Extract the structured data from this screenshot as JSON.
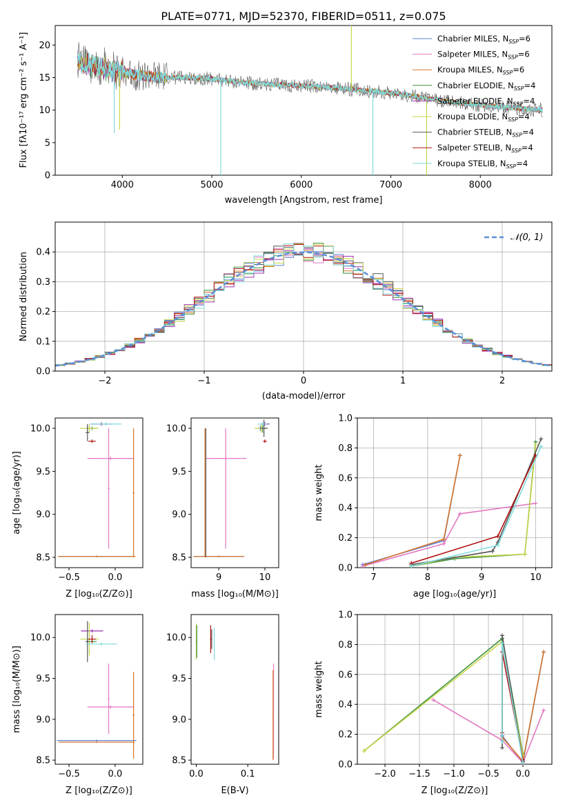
{
  "title": "PLATE=0771, MJD=52370, FIBERID=0511, z=0.075",
  "legend": [
    {
      "label": "Chabrier MILES, N",
      "sub": "SSP",
      "tail": "=6",
      "color": "#5b7fd6"
    },
    {
      "label": "Salpeter MILES, N",
      "sub": "SSP",
      "tail": "=6",
      "color": "#e377c2"
    },
    {
      "label": "Kroupa MILES, N",
      "sub": "SSP",
      "tail": "=6",
      "color": "#d6762a"
    },
    {
      "label": "Chabrier ELODIE, N",
      "sub": "SSP",
      "tail": "=4",
      "color": "#3c8f3c"
    },
    {
      "label": "Salpeter ELODIE, N",
      "sub": "SSP",
      "tail": "=4",
      "color": "#9b30b0"
    },
    {
      "label": "Kroupa ELODIE, N",
      "sub": "SSP",
      "tail": "=4",
      "color": "#c9d64a"
    },
    {
      "label": "Chabrier STELIB, N",
      "sub": "SSP",
      "tail": "=4",
      "color": "#555555"
    },
    {
      "label": "Salpeter STELIB, N",
      "sub": "SSP",
      "tail": "=4",
      "color": "#b01010"
    },
    {
      "label": "Kroupa STELIB, N",
      "sub": "SSP",
      "tail": "=4",
      "color": "#7fdcdc"
    }
  ],
  "chart_data": [
    {
      "type": "line",
      "xlabel": "wavelength [Angstrom, rest frame]",
      "ylabel": "Flux [fλ10⁻¹⁷ erg cm⁻² s⁻¹ A⁻¹]",
      "xlim": [
        3250,
        8800
      ],
      "ylim": [
        0,
        23
      ],
      "xticks": [
        4000,
        5000,
        6000,
        7000,
        8000
      ],
      "yticks": [
        0,
        5,
        10,
        15,
        20
      ],
      "series": [
        {
          "name": "Chabrier MILES, NSSP=6",
          "x": [
            3500,
            3800,
            4100,
            4400,
            4700,
            5000,
            5300,
            5600,
            5900,
            6200,
            6500,
            6800,
            7100,
            7400,
            7700,
            8000,
            8300,
            8700
          ],
          "y": [
            17.5,
            16.5,
            15.5,
            15.0,
            15.0,
            14.8,
            14.3,
            14.0,
            13.8,
            13.6,
            13.3,
            12.9,
            12.5,
            11.8,
            11.2,
            10.8,
            10.4,
            10.0
          ]
        }
      ]
    },
    {
      "type": "line",
      "xlabel": "(data-model)/error",
      "ylabel": "Normed distribution",
      "xlim": [
        -2.5,
        2.5
      ],
      "ylim": [
        0,
        0.5
      ],
      "xticks": [
        -2,
        -1,
        0,
        1,
        2
      ],
      "yticks": [
        0.0,
        0.1,
        0.2,
        0.3,
        0.4
      ],
      "legend": "𝒩(0, 1)",
      "series": [
        {
          "name": "N(0,1)",
          "x": [
            -2.5,
            -2.0,
            -1.5,
            -1.0,
            -0.5,
            0.0,
            0.5,
            1.0,
            1.5,
            2.0,
            2.5
          ],
          "y": [
            0.018,
            0.054,
            0.13,
            0.242,
            0.352,
            0.399,
            0.352,
            0.242,
            0.13,
            0.054,
            0.018
          ]
        }
      ]
    },
    {
      "type": "scatter",
      "xlabel": "Z [log₁₀(Z/Z⊙)]",
      "ylabel": "age  [log₁₀(age/yr)]",
      "xlim": [
        -0.65,
        0.3
      ],
      "ylim": [
        8.38,
        10.12
      ],
      "xticks": [
        -0.5,
        0.0
      ],
      "yticks": [
        8.5,
        9.0,
        9.5,
        10.0
      ]
    },
    {
      "type": "scatter",
      "xlabel": "mass [log₁₀(M/M⊙)]",
      "xlim": [
        8.4,
        10.3
      ],
      "ylim": [
        8.38,
        10.12
      ],
      "xticks": [
        9,
        10
      ],
      "yticks": [
        8.5,
        9.0,
        9.5,
        10.0
      ]
    },
    {
      "type": "line",
      "xlabel": "age  [log₁₀(age/yr)]",
      "ylabel": "mass weight",
      "xlim": [
        6.7,
        10.3
      ],
      "ylim": [
        0,
        1.0
      ],
      "xticks": [
        7,
        8,
        9,
        10
      ],
      "yticks": [
        0.0,
        0.2,
        0.4,
        0.6,
        0.8,
        1.0
      ],
      "series": [
        {
          "name": "Chabrier MILES",
          "x": [
            6.8,
            8.3,
            8.6
          ],
          "y": [
            0.02,
            0.18,
            0.75
          ]
        },
        {
          "name": "Salpeter MILES",
          "x": [
            6.8,
            8.3,
            8.6,
            10.0
          ],
          "y": [
            0.01,
            0.16,
            0.36,
            0.43
          ]
        },
        {
          "name": "Kroupa MILES",
          "x": [
            6.85,
            8.3,
            8.6
          ],
          "y": [
            0.02,
            0.19,
            0.75
          ]
        },
        {
          "name": "Chabrier ELODIE",
          "x": [
            7.7,
            8.5,
            9.8,
            10.0
          ],
          "y": [
            0.01,
            0.06,
            0.09,
            0.84
          ]
        },
        {
          "name": "Kroupa ELODIE",
          "x": [
            7.7,
            8.5,
            9.8,
            10.0
          ],
          "y": [
            0.01,
            0.07,
            0.09,
            0.82
          ]
        },
        {
          "name": "Chabrier STELIB",
          "x": [
            7.7,
            9.2,
            9.3,
            10.1
          ],
          "y": [
            0.02,
            0.11,
            0.17,
            0.86
          ]
        },
        {
          "name": "Salpeter STELIB",
          "x": [
            7.7,
            9.3,
            10.0
          ],
          "y": [
            0.03,
            0.21,
            0.75
          ]
        },
        {
          "name": "Kroupa STELIB",
          "x": [
            7.7,
            9.3,
            10.1
          ],
          "y": [
            0.01,
            0.15,
            0.81
          ]
        }
      ]
    },
    {
      "type": "scatter",
      "xlabel": "Z [log₁₀(Z/Z⊙)]",
      "ylabel": "mass [log₁₀(M/M⊙)]",
      "xlim": [
        -0.65,
        0.3
      ],
      "ylim": [
        8.45,
        10.28
      ],
      "xticks": [
        -0.5,
        0.0
      ],
      "yticks": [
        8.5,
        9.0,
        9.5,
        10.0
      ]
    },
    {
      "type": "scatter",
      "xlabel": "E(B-V)",
      "xlim": [
        -0.01,
        0.16
      ],
      "ylim": [
        8.45,
        10.28
      ],
      "xticks": [
        0.0,
        0.1
      ],
      "yticks": [
        8.5,
        9.0,
        9.5,
        10.0
      ]
    },
    {
      "type": "line",
      "xlabel": "Z [log₁₀(Z/Z⊙)]",
      "ylabel": "mass weight",
      "xlim": [
        -2.4,
        0.42
      ],
      "ylim": [
        0,
        1.0
      ],
      "xticks": [
        -2.0,
        -1.5,
        -1.0,
        -0.5,
        0.0
      ],
      "yticks": [
        0.0,
        0.2,
        0.4,
        0.6,
        0.8,
        1.0
      ],
      "series": [
        {
          "name": "Chabrier MILES",
          "x": [
            -0.3,
            0.0,
            0.3
          ],
          "y": [
            0.19,
            0.01,
            0.75
          ]
        },
        {
          "name": "Salpeter MILES",
          "x": [
            -1.3,
            -0.3,
            0.0,
            0.3
          ],
          "y": [
            0.43,
            0.16,
            0.01,
            0.36
          ]
        },
        {
          "name": "Kroupa MILES",
          "x": [
            -0.3,
            0.0,
            0.3
          ],
          "y": [
            0.18,
            0.02,
            0.75
          ]
        },
        {
          "name": "Chabrier ELODIE",
          "x": [
            -2.3,
            -0.3,
            0.0
          ],
          "y": [
            0.09,
            0.84,
            0.07
          ]
        },
        {
          "name": "Kroupa ELODIE",
          "x": [
            -2.3,
            -0.3,
            0.0
          ],
          "y": [
            0.09,
            0.82,
            0.06
          ]
        },
        {
          "name": "Chabrier STELIB",
          "x": [
            -0.3,
            -0.3,
            0.0
          ],
          "y": [
            0.11,
            0.86,
            0.02
          ]
        },
        {
          "name": "Salpeter STELIB",
          "x": [
            -0.3,
            -0.3,
            0.0
          ],
          "y": [
            0.21,
            0.75,
            0.03
          ]
        },
        {
          "name": "Kroupa STELIB",
          "x": [
            -0.3,
            -0.3,
            0.0
          ],
          "y": [
            0.15,
            0.81,
            0.01
          ]
        }
      ]
    }
  ]
}
